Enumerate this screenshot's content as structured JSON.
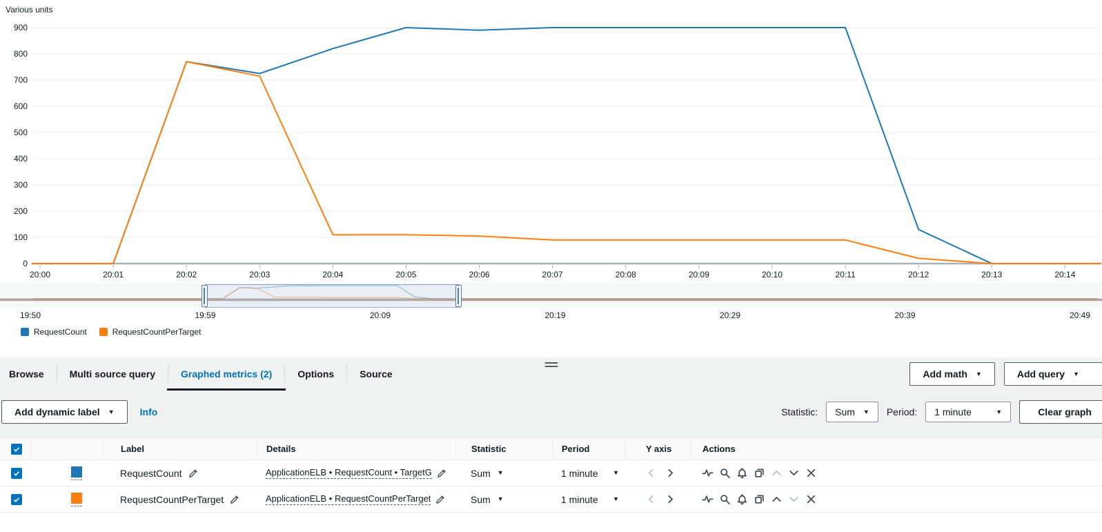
{
  "chart_data": {
    "type": "line",
    "title": "Various units",
    "x_labels": [
      "20:00",
      "20:01",
      "20:02",
      "20:03",
      "20:04",
      "20:05",
      "20:06",
      "20:07",
      "20:08",
      "20:09",
      "20:10",
      "20:11",
      "20:12",
      "20:13",
      "20:14"
    ],
    "ylim": [
      0,
      900
    ],
    "yticks": [
      0,
      100,
      200,
      300,
      400,
      500,
      600,
      700,
      800,
      900
    ],
    "grid": true,
    "legend_position": "bottom-left",
    "series": [
      {
        "name": "RequestCount",
        "color": "#1f77b4",
        "values": [
          0,
          0,
          770,
          725,
          820,
          900,
          890,
          900,
          900,
          900,
          900,
          900,
          130,
          0,
          0
        ]
      },
      {
        "name": "RequestCountPerTarget",
        "color": "#ff7f0e",
        "values": [
          0,
          0,
          770,
          715,
          110,
          110,
          105,
          90,
          90,
          90,
          90,
          90,
          20,
          0,
          0
        ]
      }
    ],
    "timeline": {
      "labels": [
        "19:50",
        "19:59",
        "20:09",
        "20:19",
        "20:29",
        "20:39",
        "20:49"
      ],
      "selection": {
        "start_label": "20:00",
        "end_label": "20:14"
      }
    }
  },
  "panel": {
    "tabs": [
      {
        "label": "Browse"
      },
      {
        "label": "Multi source query"
      },
      {
        "label": "Graphed metrics (2)"
      },
      {
        "label": "Options"
      },
      {
        "label": "Source"
      }
    ],
    "active_tab": "Graphed metrics (2)",
    "add_math_label": "Add math",
    "add_query_label": "Add query",
    "add_dynamic_label": "Add dynamic label",
    "info_label": "Info",
    "statistic_label": "Statistic:",
    "statistic_value": "Sum",
    "period_label": "Period:",
    "period_value": "1 minute",
    "clear_graph_label": "Clear graph"
  },
  "table": {
    "columns": [
      "Label",
      "Details",
      "Statistic",
      "Period",
      "Y axis",
      "Actions"
    ],
    "rows": [
      {
        "checked": true,
        "color": "#1f77b4",
        "label": "RequestCount",
        "details": "ApplicationELB • RequestCount • TargetG",
        "statistic": "Sum",
        "period": "1 minute",
        "move_up_enabled": false,
        "move_down_enabled": true
      },
      {
        "checked": true,
        "color": "#ff7f0e",
        "label": "RequestCountPerTarget",
        "details": "ApplicationELB • RequestCountPerTarget",
        "statistic": "Sum",
        "period": "1 minute",
        "move_up_enabled": true,
        "move_down_enabled": false
      }
    ]
  }
}
